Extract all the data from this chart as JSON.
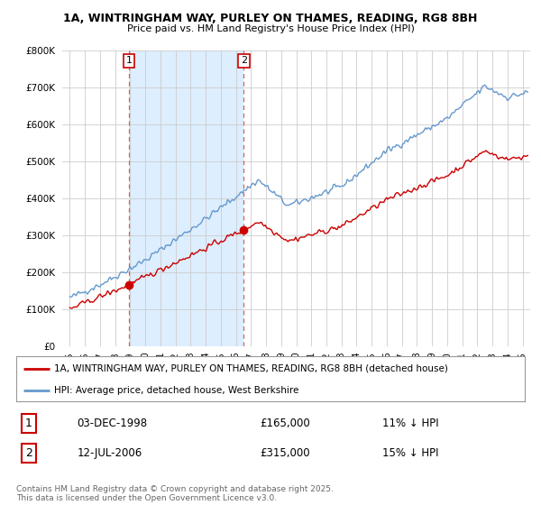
{
  "title1": "1A, WINTRINGHAM WAY, PURLEY ON THAMES, READING, RG8 8BH",
  "title2": "Price paid vs. HM Land Registry's House Price Index (HPI)",
  "legend_label_red": "1A, WINTRINGHAM WAY, PURLEY ON THAMES, READING, RG8 8BH (detached house)",
  "legend_label_blue": "HPI: Average price, detached house, West Berkshire",
  "transaction1_label": "1",
  "transaction1_date": "03-DEC-1998",
  "transaction1_price": "£165,000",
  "transaction1_hpi": "11% ↓ HPI",
  "transaction2_label": "2",
  "transaction2_date": "12-JUL-2006",
  "transaction2_price": "£315,000",
  "transaction2_hpi": "15% ↓ HPI",
  "footnote": "Contains HM Land Registry data © Crown copyright and database right 2025.\nThis data is licensed under the Open Government Licence v3.0.",
  "red_color": "#cc0000",
  "blue_color": "#6699cc",
  "shade_color": "#ddeeff",
  "background_color": "#ffffff",
  "grid_color": "#cccccc",
  "marker1_x": 1998.92,
  "marker1_y": 165000,
  "marker2_x": 2006.53,
  "marker2_y": 315000,
  "ylim_min": 0,
  "ylim_max": 800000,
  "xlim_min": 1994.5,
  "xlim_max": 2025.5,
  "yticks": [
    0,
    100000,
    200000,
    300000,
    400000,
    500000,
    600000,
    700000,
    800000
  ],
  "ytick_labels": [
    "£0",
    "£100K",
    "£200K",
    "£300K",
    "£400K",
    "£500K",
    "£600K",
    "£700K",
    "£800K"
  ],
  "xticks": [
    1995,
    1996,
    1997,
    1998,
    1999,
    2000,
    2001,
    2002,
    2003,
    2004,
    2005,
    2006,
    2007,
    2008,
    2009,
    2010,
    2011,
    2012,
    2013,
    2014,
    2015,
    2016,
    2017,
    2018,
    2019,
    2020,
    2021,
    2022,
    2023,
    2024,
    2025
  ]
}
